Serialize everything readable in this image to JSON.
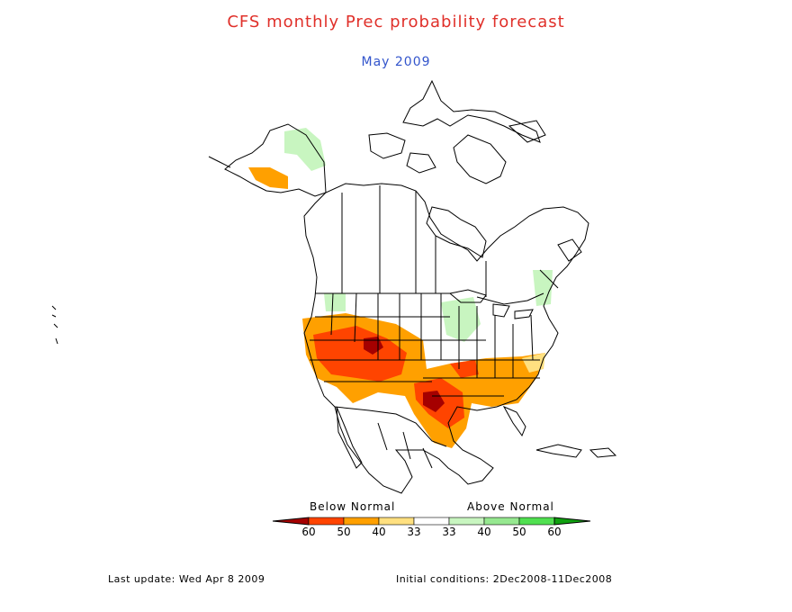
{
  "title": "CFS monthly Prec probability forecast",
  "subtitle": "May 2009",
  "colors": {
    "title": "#e0302a",
    "subtitle": "#3355cc",
    "map_lines": "#000000"
  },
  "legend": {
    "below_label": "Below Normal",
    "above_label": "Above Normal",
    "tick_labels": [
      "60",
      "50",
      "40",
      "33",
      "33",
      "40",
      "50",
      "60"
    ],
    "bins": [
      {
        "range": ">60 below",
        "color": "#a50000"
      },
      {
        "range": "50-60 below",
        "color": "#ff4400"
      },
      {
        "range": "40-50 below",
        "color": "#ffa000"
      },
      {
        "range": "33-40 below",
        "color": "#ffe080"
      },
      {
        "range": "normal",
        "color": "#ffffff"
      },
      {
        "range": "33-40 above",
        "color": "#c8f5c0"
      },
      {
        "range": "40-50 above",
        "color": "#96e890"
      },
      {
        "range": "50-60 above",
        "color": "#50e050"
      },
      {
        "range": ">60 above",
        "color": "#10a010"
      }
    ]
  },
  "footer": {
    "last_update": "Last update: Wed Apr 8 2009",
    "initial_conditions": "Initial conditions: 2Dec2008-11Dec2008"
  }
}
